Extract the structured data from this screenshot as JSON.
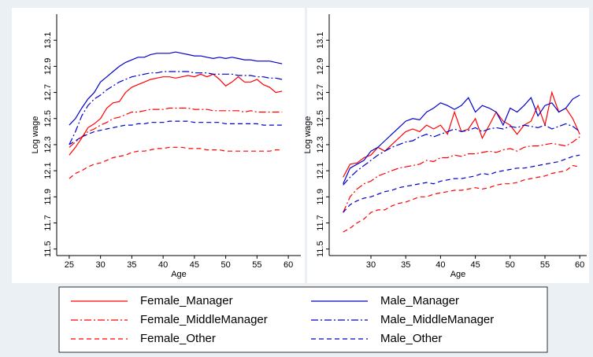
{
  "chart_data": [
    {
      "type": "line",
      "xlabel": "Age",
      "ylabel": "Log wage",
      "xlim": [
        23,
        62
      ],
      "xticks": [
        25,
        30,
        35,
        40,
        45,
        50,
        55,
        60
      ],
      "ylim": [
        11.45,
        13.3
      ],
      "yticks": [
        11.5,
        11.7,
        11.9,
        12.1,
        12.3,
        12.5,
        12.7,
        12.9,
        13.1
      ],
      "x": [
        25,
        26,
        27,
        28,
        29,
        30,
        31,
        32,
        33,
        34,
        35,
        36,
        37,
        38,
        39,
        40,
        41,
        42,
        43,
        44,
        45,
        46,
        47,
        48,
        49,
        50,
        51,
        52,
        53,
        54,
        55,
        56,
        57,
        58,
        59
      ],
      "series": [
        {
          "name": "Female_Manager",
          "color": "#ff0000",
          "style": "solid",
          "values": [
            12.22,
            12.28,
            12.35,
            12.43,
            12.46,
            12.5,
            12.58,
            12.62,
            12.63,
            12.7,
            12.74,
            12.76,
            12.78,
            12.8,
            12.81,
            12.82,
            12.82,
            12.81,
            12.82,
            12.83,
            12.82,
            12.84,
            12.82,
            12.84,
            12.8,
            12.75,
            12.78,
            12.82,
            12.78,
            12.78,
            12.8,
            12.76,
            12.74,
            12.7,
            12.71
          ]
        },
        {
          "name": "Male_Manager",
          "color": "#0000cc",
          "style": "solid",
          "values": [
            12.45,
            12.5,
            12.58,
            12.65,
            12.7,
            12.78,
            12.82,
            12.86,
            12.9,
            12.93,
            12.95,
            12.97,
            12.97,
            12.99,
            13.0,
            13.0,
            13.0,
            13.01,
            13.0,
            12.99,
            12.98,
            12.98,
            12.97,
            12.96,
            12.97,
            12.96,
            12.97,
            12.96,
            12.95,
            12.95,
            12.94,
            12.94,
            12.94,
            12.93,
            12.92
          ]
        },
        {
          "name": "Female_MiddleManager",
          "color": "#ff0000",
          "style": "dashdot",
          "values": [
            12.28,
            12.32,
            12.36,
            12.4,
            12.42,
            12.45,
            12.47,
            12.5,
            12.51,
            12.53,
            12.55,
            12.55,
            12.56,
            12.57,
            12.57,
            12.57,
            12.58,
            12.58,
            12.58,
            12.58,
            12.57,
            12.57,
            12.57,
            12.56,
            12.56,
            12.56,
            12.56,
            12.56,
            12.55,
            12.56,
            12.55,
            12.55,
            12.55,
            12.55,
            12.55
          ]
        },
        {
          "name": "Male_MiddleManager",
          "color": "#0000cc",
          "style": "dashdot",
          "values": [
            12.3,
            12.4,
            12.52,
            12.6,
            12.65,
            12.68,
            12.72,
            12.75,
            12.78,
            12.8,
            12.82,
            12.83,
            12.84,
            12.85,
            12.85,
            12.86,
            12.86,
            12.86,
            12.86,
            12.86,
            12.85,
            12.85,
            12.85,
            12.84,
            12.84,
            12.84,
            12.84,
            12.83,
            12.83,
            12.83,
            12.82,
            12.82,
            12.81,
            12.81,
            12.8
          ]
        },
        {
          "name": "Female_Other",
          "color": "#ff0000",
          "style": "dash",
          "values": [
            12.04,
            12.08,
            12.1,
            12.13,
            12.15,
            12.16,
            12.18,
            12.2,
            12.21,
            12.22,
            12.24,
            12.25,
            12.25,
            12.26,
            12.27,
            12.27,
            12.28,
            12.28,
            12.28,
            12.27,
            12.27,
            12.27,
            12.26,
            12.26,
            12.26,
            12.25,
            12.25,
            12.25,
            12.25,
            12.25,
            12.25,
            12.25,
            12.25,
            12.26,
            12.26
          ]
        },
        {
          "name": "Male_Other",
          "color": "#0000cc",
          "style": "dash",
          "values": [
            12.3,
            12.33,
            12.36,
            12.38,
            12.4,
            12.41,
            12.42,
            12.43,
            12.44,
            12.45,
            12.45,
            12.46,
            12.46,
            12.47,
            12.47,
            12.47,
            12.48,
            12.48,
            12.48,
            12.48,
            12.47,
            12.47,
            12.47,
            12.47,
            12.47,
            12.46,
            12.46,
            12.46,
            12.46,
            12.46,
            12.46,
            12.45,
            12.45,
            12.45,
            12.45
          ]
        }
      ]
    },
    {
      "type": "line",
      "xlabel": "Age",
      "ylabel": "Log wage",
      "xlim": [
        24,
        61
      ],
      "xticks": [
        30,
        35,
        40,
        45,
        50,
        55,
        60
      ],
      "ylim": [
        11.45,
        13.3
      ],
      "yticks": [
        11.5,
        11.7,
        11.9,
        12.1,
        12.3,
        12.5,
        12.7,
        12.9,
        13.1
      ],
      "x": [
        26,
        27,
        28,
        29,
        30,
        31,
        32,
        33,
        34,
        35,
        36,
        37,
        38,
        39,
        40,
        41,
        42,
        43,
        44,
        45,
        46,
        47,
        48,
        49,
        50,
        51,
        52,
        53,
        54,
        55,
        56,
        57,
        58,
        59,
        60
      ],
      "series": [
        {
          "name": "Female_Manager",
          "color": "#ff0000",
          "style": "solid",
          "values": [
            12.05,
            12.15,
            12.16,
            12.2,
            12.22,
            12.28,
            12.25,
            12.3,
            12.35,
            12.4,
            12.42,
            12.4,
            12.45,
            12.42,
            12.45,
            12.38,
            12.55,
            12.4,
            12.42,
            12.5,
            12.35,
            12.45,
            12.55,
            12.48,
            12.45,
            12.38,
            12.45,
            12.48,
            12.6,
            12.45,
            12.7,
            12.55,
            12.58,
            12.5,
            12.38
          ]
        },
        {
          "name": "Male_Manager",
          "color": "#0000cc",
          "style": "solid",
          "values": [
            12.0,
            12.12,
            12.15,
            12.18,
            12.25,
            12.28,
            12.33,
            12.38,
            12.43,
            12.48,
            12.5,
            12.49,
            12.55,
            12.58,
            12.62,
            12.6,
            12.57,
            12.6,
            12.66,
            12.55,
            12.6,
            12.58,
            12.55,
            12.45,
            12.58,
            12.55,
            12.6,
            12.66,
            12.52,
            12.6,
            12.62,
            12.55,
            12.58,
            12.65,
            12.68
          ]
        },
        {
          "name": "Female_MiddleManager",
          "color": "#ff0000",
          "style": "dashdot",
          "values": [
            11.78,
            11.9,
            11.96,
            12.0,
            12.02,
            12.06,
            12.08,
            12.1,
            12.12,
            12.13,
            12.14,
            12.15,
            12.18,
            12.17,
            12.2,
            12.2,
            12.22,
            12.21,
            12.23,
            12.23,
            12.24,
            12.25,
            12.24,
            12.26,
            12.27,
            12.25,
            12.28,
            12.29,
            12.29,
            12.3,
            12.31,
            12.3,
            12.29,
            12.32,
            12.36
          ]
        },
        {
          "name": "Male_MiddleManager",
          "color": "#0000cc",
          "style": "dashdot",
          "values": [
            11.99,
            12.05,
            12.1,
            12.14,
            12.18,
            12.22,
            12.25,
            12.28,
            12.3,
            12.32,
            12.33,
            12.36,
            12.38,
            12.36,
            12.38,
            12.4,
            12.42,
            12.4,
            12.41,
            12.43,
            12.4,
            12.42,
            12.43,
            12.42,
            12.44,
            12.43,
            12.45,
            12.44,
            12.43,
            12.45,
            12.42,
            12.44,
            12.46,
            12.44,
            12.4
          ]
        },
        {
          "name": "Female_Other",
          "color": "#ff0000",
          "style": "dash",
          "values": [
            11.63,
            11.66,
            11.7,
            11.73,
            11.78,
            11.8,
            11.8,
            11.83,
            11.85,
            11.86,
            11.88,
            11.9,
            11.9,
            11.92,
            11.93,
            11.94,
            11.95,
            11.95,
            11.96,
            11.97,
            11.96,
            11.97,
            11.99,
            12.0,
            12.0,
            12.01,
            12.03,
            12.04,
            12.05,
            12.06,
            12.08,
            12.09,
            12.1,
            12.14,
            12.13
          ]
        },
        {
          "name": "Male_Other",
          "color": "#0000cc",
          "style": "dash",
          "values": [
            11.78,
            11.84,
            11.87,
            11.89,
            11.9,
            11.92,
            11.94,
            11.95,
            11.97,
            11.98,
            11.99,
            12.0,
            12.01,
            12.0,
            12.02,
            12.03,
            12.04,
            12.04,
            12.05,
            12.06,
            12.08,
            12.07,
            12.09,
            12.1,
            12.11,
            12.12,
            12.12,
            12.13,
            12.14,
            12.15,
            12.16,
            12.17,
            12.19,
            12.21,
            12.22
          ]
        }
      ]
    }
  ]
}
